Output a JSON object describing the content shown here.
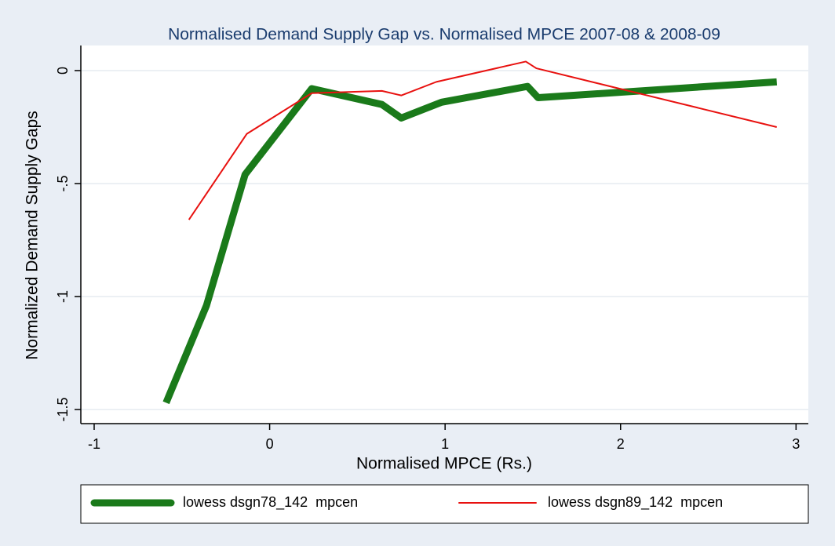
{
  "chart_data": {
    "type": "line",
    "title": "Normalised Demand Supply Gap vs. Normalised MPCE 2007-08 & 2008-09",
    "x_label": "Normalised MPCE (Rs.)",
    "y_label": "Normalized Demand Supply Gaps",
    "xlim": [
      -1.076,
      3.07
    ],
    "ylim": [
      -1.5625,
      0.111
    ],
    "xticks": [
      -1,
      0,
      1,
      2,
      3
    ],
    "yticks": [
      0,
      {
        "value": -0.5,
        "label": "-.5"
      },
      -1,
      -1.5
    ],
    "grid": true,
    "legend": "bottom",
    "series": [
      {
        "name": "lowess dsgn78_142  mpcen",
        "color": "#1a7a1a",
        "width": 9,
        "x": [
          -0.59,
          -0.36,
          -0.14,
          0.24,
          0.64,
          0.75,
          0.98,
          1.47,
          1.53,
          2.89
        ],
        "values": [
          -1.47,
          -1.04,
          -0.46,
          -0.08,
          -0.15,
          -0.21,
          -0.14,
          -0.07,
          -0.12,
          -0.05
        ]
      },
      {
        "name": "lowess dsgn89_142  mpcen",
        "color": "#e8110f",
        "width": 2,
        "x": [
          -0.46,
          -0.13,
          0.24,
          0.64,
          0.75,
          0.95,
          1.46,
          1.52,
          2.89
        ],
        "values": [
          -0.66,
          -0.28,
          -0.1,
          -0.09,
          -0.11,
          -0.05,
          0.04,
          0.01,
          -0.25
        ]
      }
    ]
  }
}
